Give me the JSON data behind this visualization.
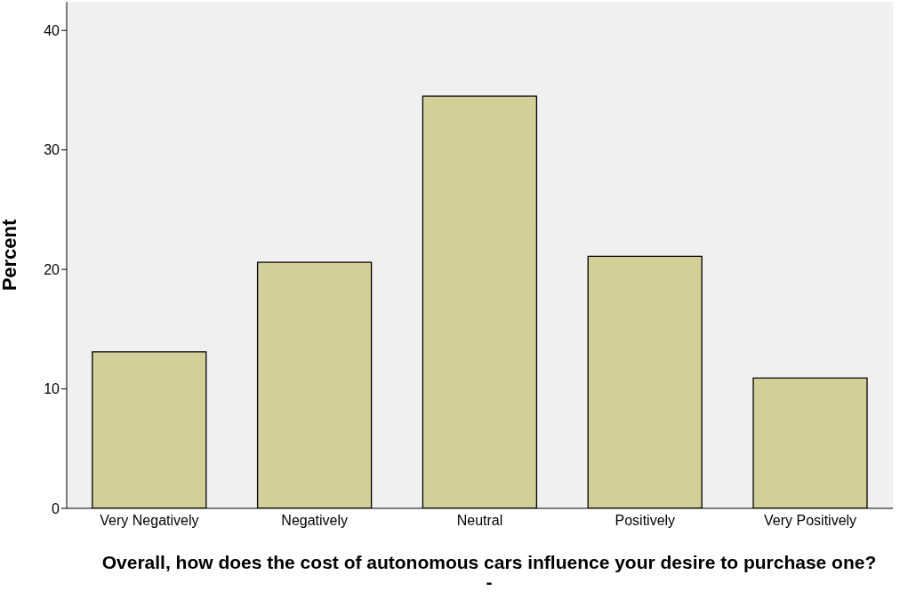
{
  "chart_data": {
    "type": "bar",
    "xlabel": "Overall, how does the cost of autonomous cars influence your desire to purchase one? -",
    "ylabel": "Percent",
    "categories": [
      "Very Negatively",
      "Negatively",
      "Neutral",
      "Positively",
      "Very Positively"
    ],
    "values": [
      13.1,
      20.6,
      34.5,
      21.1,
      10.9
    ],
    "color": "#d4cf98",
    "ylim": [
      0,
      42.4
    ],
    "yticks": [
      0,
      10,
      20,
      30,
      40
    ],
    "grid": false
  }
}
